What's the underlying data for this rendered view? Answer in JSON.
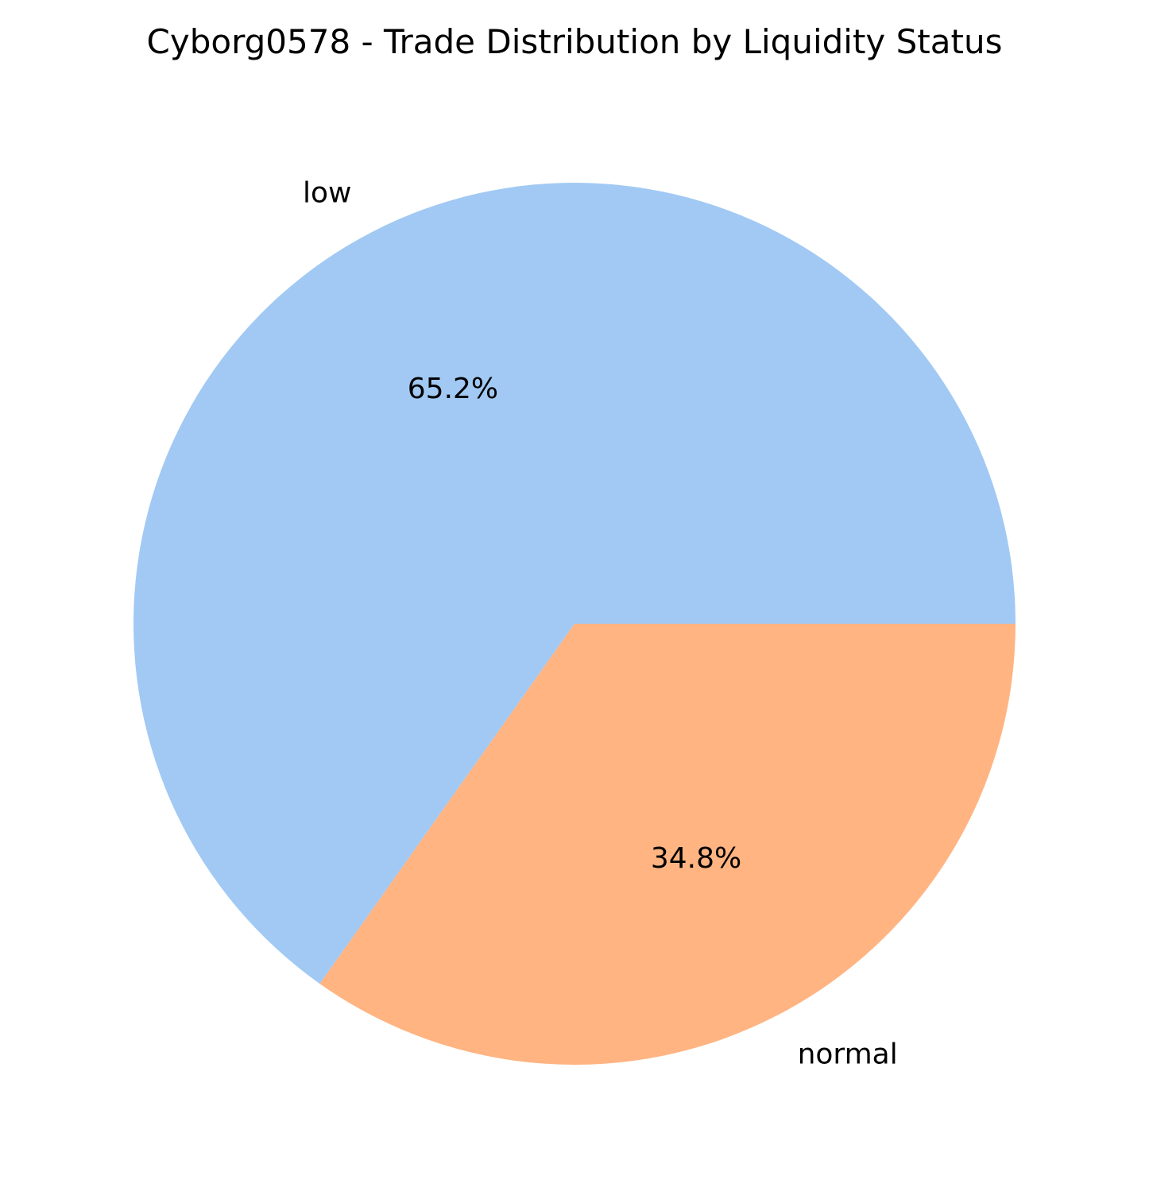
{
  "chart_data": {
    "type": "pie",
    "title": "Cyborg0578 - Trade Distribution by Liquidity Status",
    "categories": [
      "low",
      "normal"
    ],
    "values": [
      65.2,
      34.8
    ],
    "value_labels": [
      "65.2%",
      "34.8%"
    ],
    "colors": [
      "#a1c9f4",
      "#ffb482"
    ],
    "start_angle_deg": 0,
    "direction": "counterclockwise",
    "legend": "none"
  }
}
